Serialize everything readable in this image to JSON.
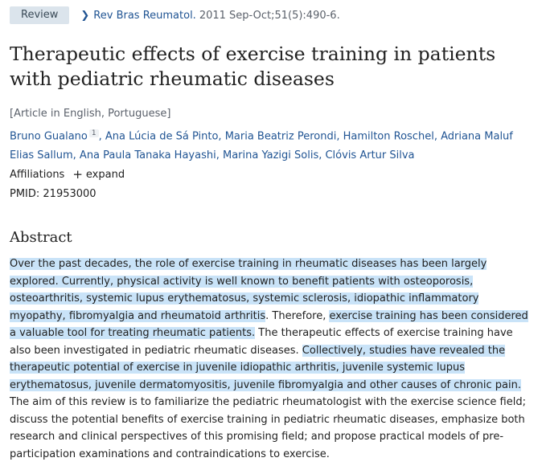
{
  "citation": {
    "badge": "Review",
    "journal": "Rev Bras Reumatol.",
    "date_pages": "2011 Sep-Oct;51(5):490-6."
  },
  "title": "Therapeutic effects of exercise training in patients with pediatric rheumatic diseases",
  "language_note": "[Article in English, Portuguese]",
  "authors": [
    {
      "name": "Bruno Gualano",
      "affil_ref": "1"
    },
    {
      "name": "Ana Lúcia de Sá Pinto"
    },
    {
      "name": "Maria Beatriz Perondi"
    },
    {
      "name": "Hamilton Roschel"
    },
    {
      "name": "Adriana Maluf Elias Sallum"
    },
    {
      "name": "Ana Paula Tanaka Hayashi"
    },
    {
      "name": "Marina Yazigi Solis"
    },
    {
      "name": "Clóvis Artur Silva"
    }
  ],
  "affiliations": {
    "label": "Affiliations",
    "expand_label": "expand"
  },
  "pmid": "PMID: 21953000",
  "abstract": {
    "heading": "Abstract",
    "segments": [
      {
        "text": "Over the past decades, the role of exercise training in rheumatic diseases has been largely explored. Currently, physical activity is well known to benefit patients with osteoporosis, osteoarthritis, systemic lupus erythematosus, systemic sclerosis, idiopathic inflammatory myopathy, fibromyalgia and rheumatoid arthritis",
        "highlighted": true
      },
      {
        "text": ". Therefore, ",
        "highlighted": false
      },
      {
        "text": "exercise training has been considered a valuable tool for treating rheumatic patients.",
        "highlighted": true
      },
      {
        "text": " The therapeutic effects of exercise training have also been investigated in pediatric rheumatic diseases. ",
        "highlighted": false
      },
      {
        "text": "Collectively, studies have revealed the therapeutic potential of exercise in juvenile idiopathic arthritis, juvenile systemic lupus erythematosus, juvenile dermatomyositis, juvenile fibromyalgia and other causes of chronic pain.",
        "highlighted": true
      },
      {
        "text": " The aim of this review is to familiarize the pediatric rheumatologist with the exercise science field; discuss the potential benefits of exercise training in pediatric rheumatic diseases, emphasize both research and clinical perspectives of this promising field; and propose practical models of pre-participation examinations and contraindications to exercise.",
        "highlighted": false
      }
    ]
  },
  "colors": {
    "link": "#205493",
    "highlight": "#c9e3f8",
    "badge_bg": "#dbe4ec"
  },
  "icons": {
    "journal_chevron": "chevron-right-icon",
    "expand": "plus-icon"
  }
}
